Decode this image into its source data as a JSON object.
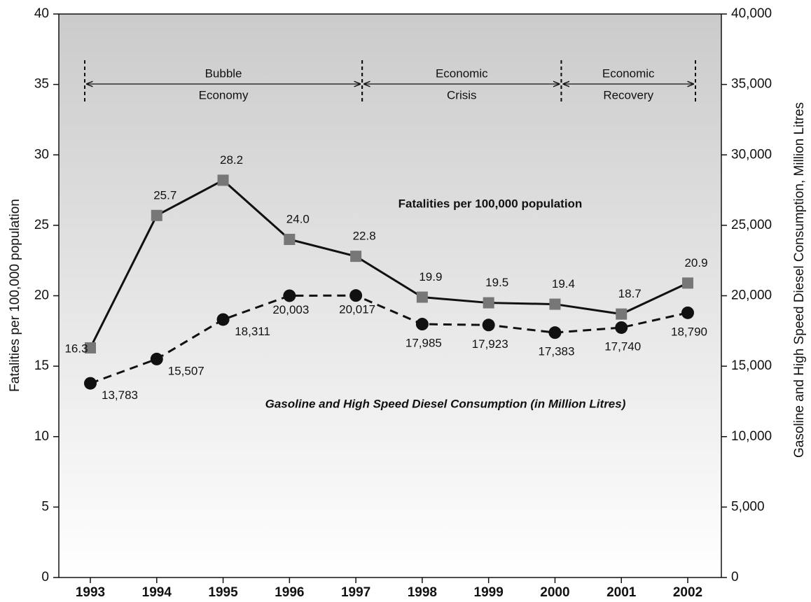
{
  "chart_data": {
    "type": "line",
    "categories": [
      "1993",
      "1994",
      "1995",
      "1996",
      "1997",
      "1998",
      "1999",
      "2000",
      "2001",
      "2002"
    ],
    "ylabel": "Fatalities per 100,000 population",
    "y2label": "Gasoline and High Speed Diesel Consumption, Million Litres",
    "ylim": [
      0,
      40
    ],
    "yticks": [
      0,
      5,
      10,
      15,
      20,
      25,
      30,
      35,
      40
    ],
    "y2lim": [
      0,
      40000
    ],
    "y2ticks": [
      0,
      {
        "value": 5000,
        "label": "5,000"
      },
      {
        "value": 10000,
        "label": "10,000"
      },
      {
        "value": 15000,
        "label": "15,000"
      },
      {
        "value": 20000,
        "label": "20,000"
      },
      {
        "value": 25000,
        "label": "25,000"
      },
      {
        "value": 30000,
        "label": "30,000"
      },
      {
        "value": 35000,
        "label": "35,000"
      },
      {
        "value": 40000,
        "label": "40,000"
      }
    ],
    "series": [
      {
        "name": "Fatalities per 100,000 population",
        "color": "#777777",
        "line_color": "#111111",
        "marker": "square",
        "dash": false,
        "values": [
          16.3,
          25.7,
          28.2,
          24.0,
          22.8,
          19.9,
          19.5,
          19.4,
          18.7,
          20.9
        ],
        "value_labels": [
          "16.3",
          "25.7",
          "28.2",
          "24.0",
          "22.8",
          "19.9",
          "19.5",
          "19.4",
          "18.7",
          "20.9"
        ]
      },
      {
        "name": "Gasoline and High Speed Diesel Consumption (in Million Litres)",
        "color": "#111111",
        "line_color": "#111111",
        "marker": "circle",
        "dash": true,
        "axis": "y2",
        "values": [
          13783,
          15507,
          18311,
          20003,
          20017,
          17985,
          17923,
          17383,
          17740,
          18790
        ],
        "value_labels": [
          "13,783",
          "15,507",
          "18,311",
          "20,003",
          "20,017",
          "17,985",
          "17,923",
          "17,383",
          "17,740",
          "18,790"
        ]
      }
    ],
    "periods": [
      {
        "label_lines": [
          "Bubble",
          "Economy"
        ],
        "start": "1993",
        "end": "1997"
      },
      {
        "label_lines": [
          "Economic",
          "Crisis"
        ],
        "start": "1997",
        "end": "2000"
      },
      {
        "label_lines": [
          "Economic",
          "Recovery"
        ],
        "start": "2000",
        "end": "2002"
      }
    ]
  }
}
